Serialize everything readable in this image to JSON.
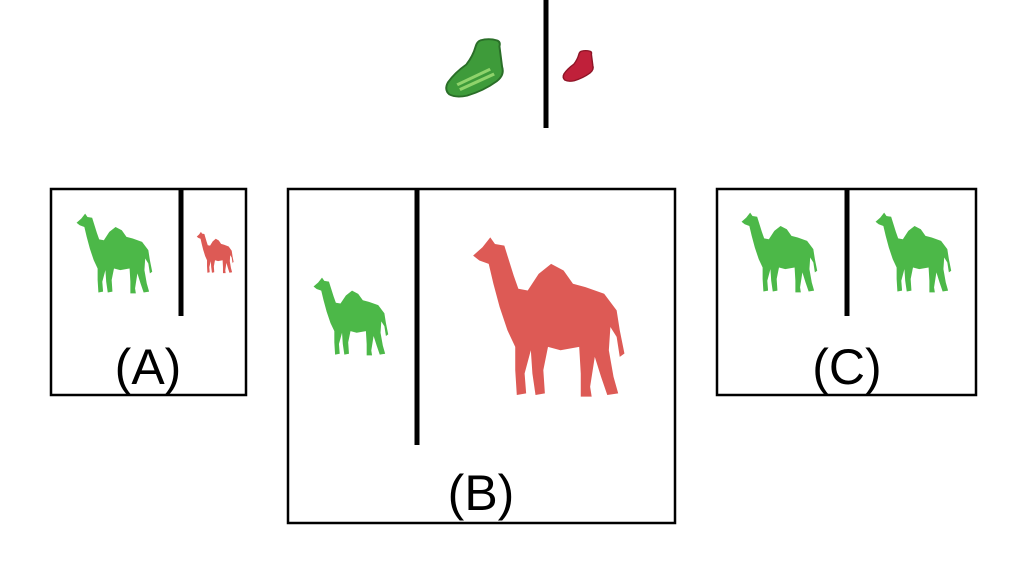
{
  "colors": {
    "green": "#4cb848",
    "green_dark": "#2f8a30",
    "red": "#d9534f",
    "red_dark": "#b8202e",
    "frame": "#000000"
  },
  "top_pair": {
    "left_icon": "green-sneaker-icon",
    "right_icon": "red-sneaker-icon"
  },
  "panels": {
    "a": {
      "label": "(A)",
      "left_icon": "green-camel-icon",
      "right_icon": "small-red-camel-icon"
    },
    "b": {
      "label": "(B)",
      "left_icon": "green-camel-icon",
      "right_icon": "large-red-camel-icon"
    },
    "c": {
      "label": "(C)",
      "left_icon": "green-camel-icon",
      "right_icon": "green-camel-icon"
    }
  }
}
